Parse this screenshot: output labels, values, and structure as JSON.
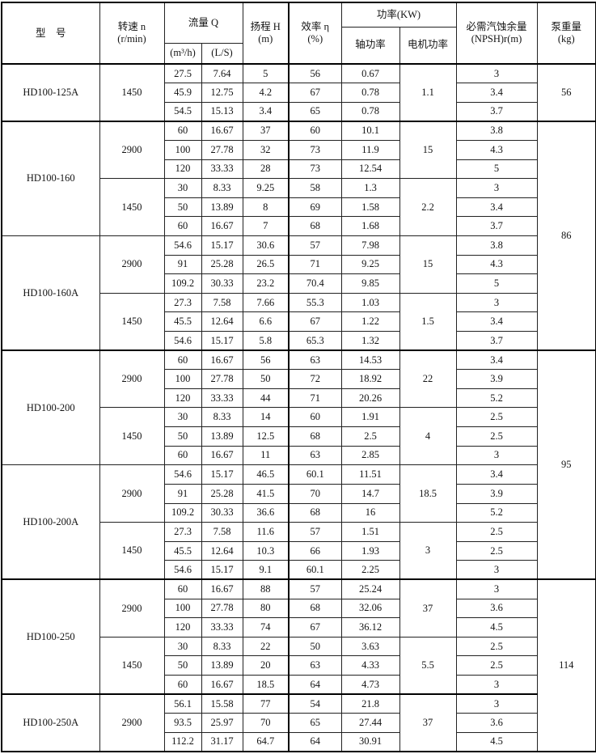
{
  "header": {
    "model": "型　号",
    "speed_l1": "转速 n",
    "speed_l2": "(r/min)",
    "flow": "流量 Q",
    "flow_unit_m3h": "(m³/h)",
    "flow_unit_ls": "(L/S)",
    "head_l1": "扬程 H",
    "head_l2": "(m)",
    "eff_l1": "效率 η",
    "eff_l2": "(%)",
    "power": "功率(KW)",
    "shaft_power": "轴功率",
    "motor_power": "电机功率",
    "npsh_l1": "必需汽蚀余量",
    "npsh_l2": "(NPSH)r(m)",
    "weight_l1": "泵重量",
    "weight_l2": "(kg)"
  },
  "models": [
    {
      "name": "HD100-125A",
      "bold_before": false,
      "blocks": [
        {
          "speed": "1450",
          "motor": "1.1",
          "rows": [
            [
              "27.5",
              "7.64",
              "5",
              "56",
              "0.67",
              "3"
            ],
            [
              "45.9",
              "12.75",
              "4.2",
              "67",
              "0.78",
              "3.4"
            ],
            [
              "54.5",
              "15.13",
              "3.4",
              "65",
              "0.78",
              "3.7"
            ]
          ]
        }
      ]
    },
    {
      "name": "HD100-160",
      "bold_before": true,
      "blocks": [
        {
          "speed": "2900",
          "motor": "15",
          "rows": [
            [
              "60",
              "16.67",
              "37",
              "60",
              "10.1",
              "3.8"
            ],
            [
              "100",
              "27.78",
              "32",
              "73",
              "11.9",
              "4.3"
            ],
            [
              "120",
              "33.33",
              "28",
              "73",
              "12.54",
              "5"
            ]
          ]
        },
        {
          "speed": "1450",
          "motor": "2.2",
          "rows": [
            [
              "30",
              "8.33",
              "9.25",
              "58",
              "1.3",
              "3"
            ],
            [
              "50",
              "13.89",
              "8",
              "69",
              "1.58",
              "3.4"
            ],
            [
              "60",
              "16.67",
              "7",
              "68",
              "1.68",
              "3.7"
            ]
          ]
        }
      ]
    },
    {
      "name": "HD100-160A",
      "bold_before": false,
      "blocks": [
        {
          "speed": "2900",
          "motor": "15",
          "rows": [
            [
              "54.6",
              "15.17",
              "30.6",
              "57",
              "7.98",
              "3.8"
            ],
            [
              "91",
              "25.28",
              "26.5",
              "71",
              "9.25",
              "4.3"
            ],
            [
              "109.2",
              "30.33",
              "23.2",
              "70.4",
              "9.85",
              "5"
            ]
          ]
        },
        {
          "speed": "1450",
          "motor": "1.5",
          "rows": [
            [
              "27.3",
              "7.58",
              "7.66",
              "55.3",
              "1.03",
              "3"
            ],
            [
              "45.5",
              "12.64",
              "6.6",
              "67",
              "1.22",
              "3.4"
            ],
            [
              "54.6",
              "15.17",
              "5.8",
              "65.3",
              "1.32",
              "3.7"
            ]
          ]
        }
      ]
    },
    {
      "name": "HD100-200",
      "bold_before": true,
      "blocks": [
        {
          "speed": "2900",
          "motor": "22",
          "rows": [
            [
              "60",
              "16.67",
              "56",
              "63",
              "14.53",
              "3.4"
            ],
            [
              "100",
              "27.78",
              "50",
              "72",
              "18.92",
              "3.9"
            ],
            [
              "120",
              "33.33",
              "44",
              "71",
              "20.26",
              "5.2"
            ]
          ]
        },
        {
          "speed": "1450",
          "motor": "4",
          "rows": [
            [
              "30",
              "8.33",
              "14",
              "60",
              "1.91",
              "2.5"
            ],
            [
              "50",
              "13.89",
              "12.5",
              "68",
              "2.5",
              "2.5"
            ],
            [
              "60",
              "16.67",
              "11",
              "63",
              "2.85",
              "3"
            ]
          ]
        }
      ]
    },
    {
      "name": "HD100-200A",
      "bold_before": false,
      "blocks": [
        {
          "speed": "2900",
          "motor": "18.5",
          "rows": [
            [
              "54.6",
              "15.17",
              "46.5",
              "60.1",
              "11.51",
              "3.4"
            ],
            [
              "91",
              "25.28",
              "41.5",
              "70",
              "14.7",
              "3.9"
            ],
            [
              "109.2",
              "30.33",
              "36.6",
              "68",
              "16",
              "5.2"
            ]
          ]
        },
        {
          "speed": "1450",
          "motor": "3",
          "rows": [
            [
              "27.3",
              "7.58",
              "11.6",
              "57",
              "1.51",
              "2.5"
            ],
            [
              "45.5",
              "12.64",
              "10.3",
              "66",
              "1.93",
              "2.5"
            ],
            [
              "54.6",
              "15.17",
              "9.1",
              "60.1",
              "2.25",
              "3"
            ]
          ]
        }
      ]
    },
    {
      "name": "HD100-250",
      "bold_before": true,
      "blocks": [
        {
          "speed": "2900",
          "motor": "37",
          "rows": [
            [
              "60",
              "16.67",
              "88",
              "57",
              "25.24",
              "3"
            ],
            [
              "100",
              "27.78",
              "80",
              "68",
              "32.06",
              "3.6"
            ],
            [
              "120",
              "33.33",
              "74",
              "67",
              "36.12",
              "4.5"
            ]
          ]
        },
        {
          "speed": "1450",
          "motor": "5.5",
          "rows": [
            [
              "30",
              "8.33",
              "22",
              "50",
              "3.63",
              "2.5"
            ],
            [
              "50",
              "13.89",
              "20",
              "63",
              "4.33",
              "2.5"
            ],
            [
              "60",
              "16.67",
              "18.5",
              "64",
              "4.73",
              "3"
            ]
          ]
        }
      ]
    },
    {
      "name": "HD100-250A",
      "bold_before": true,
      "blocks": [
        {
          "speed": "2900",
          "motor": "37",
          "rows": [
            [
              "56.1",
              "15.58",
              "77",
              "54",
              "21.8",
              "3"
            ],
            [
              "93.5",
              "25.97",
              "70",
              "65",
              "27.44",
              "3.6"
            ],
            [
              "112.2",
              "31.17",
              "64.7",
              "64",
              "30.91",
              "4.5"
            ]
          ]
        }
      ]
    }
  ],
  "weights": [
    {
      "value": "56",
      "rows": 3
    },
    {
      "value": "86",
      "rows": 12
    },
    {
      "value": "95",
      "rows": 12
    },
    {
      "value": "114",
      "rows": 9
    }
  ]
}
